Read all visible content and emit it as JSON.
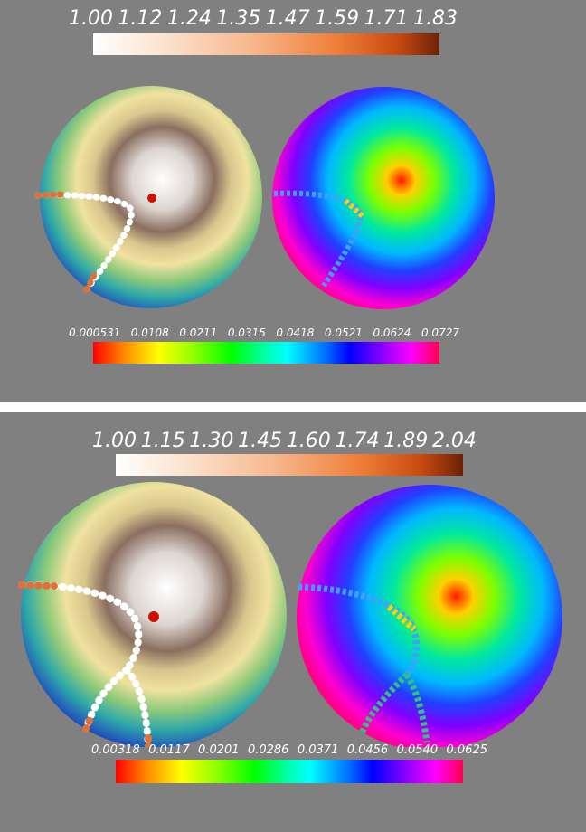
{
  "panels": [
    {
      "top_scale": {
        "ticks": [
          "1.00",
          "1.12",
          "1.24",
          "1.35",
          "1.47",
          "1.59",
          "1.71",
          "1.83"
        ]
      },
      "bottom_scale": {
        "ticks": [
          "0.000531",
          "0.0108",
          "0.0211",
          "0.0315",
          "0.0418",
          "0.0521",
          "0.0624",
          "0.0727"
        ]
      }
    },
    {
      "top_scale": {
        "ticks": [
          "1.00",
          "1.15",
          "1.30",
          "1.45",
          "1.60",
          "1.74",
          "1.89",
          "2.04"
        ]
      },
      "bottom_scale": {
        "ticks": [
          "0.00318",
          "0.0117",
          "0.0201",
          "0.0286",
          "0.0371",
          "0.0456",
          "0.0540",
          "0.0625"
        ]
      }
    }
  ],
  "colors": {
    "background": "#808080",
    "separator": "#ffffff",
    "marker": "#cc1100",
    "path_white": "#ffffff",
    "path_orange": "#e0703a"
  }
}
